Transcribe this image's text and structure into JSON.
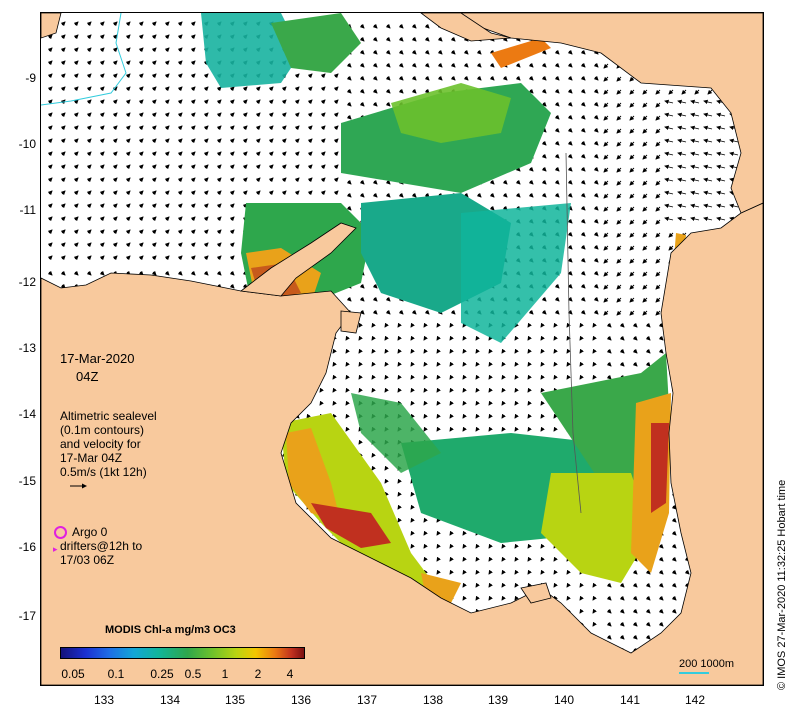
{
  "map": {
    "y_ticks": [
      "-9",
      "-10",
      "-11",
      "-12",
      "-13",
      "-14",
      "-15",
      "-16",
      "-17"
    ],
    "x_ticks": [
      "133",
      "134",
      "135",
      "136",
      "137",
      "138",
      "139",
      "140",
      "141",
      "142"
    ],
    "land_color": "#f8c99d",
    "coast_color": "#000000",
    "arrow_color": "#000000"
  },
  "annotation": {
    "date": "17-Mar-2020",
    "time": "04Z",
    "altimetry_lines": [
      "Altimetric sealevel",
      "(0.1m contours)",
      "and velocity for",
      "17-Mar 04Z",
      "0.5m/s (1kt 12h)"
    ],
    "argo_label": "Argo 0",
    "drifters_lines": [
      "drifters@12h to",
      "17/03 06Z"
    ],
    "scale_label": "200  1000m"
  },
  "colorbar": {
    "title": "MODIS Chl-a mg/m3 OC3",
    "labels": [
      "0.05",
      "0.1",
      "0.25",
      "0.5",
      "1",
      "2",
      "4"
    ]
  },
  "credit": "© IMOS 27-Mar-2020 11:32:25 Hobart time"
}
